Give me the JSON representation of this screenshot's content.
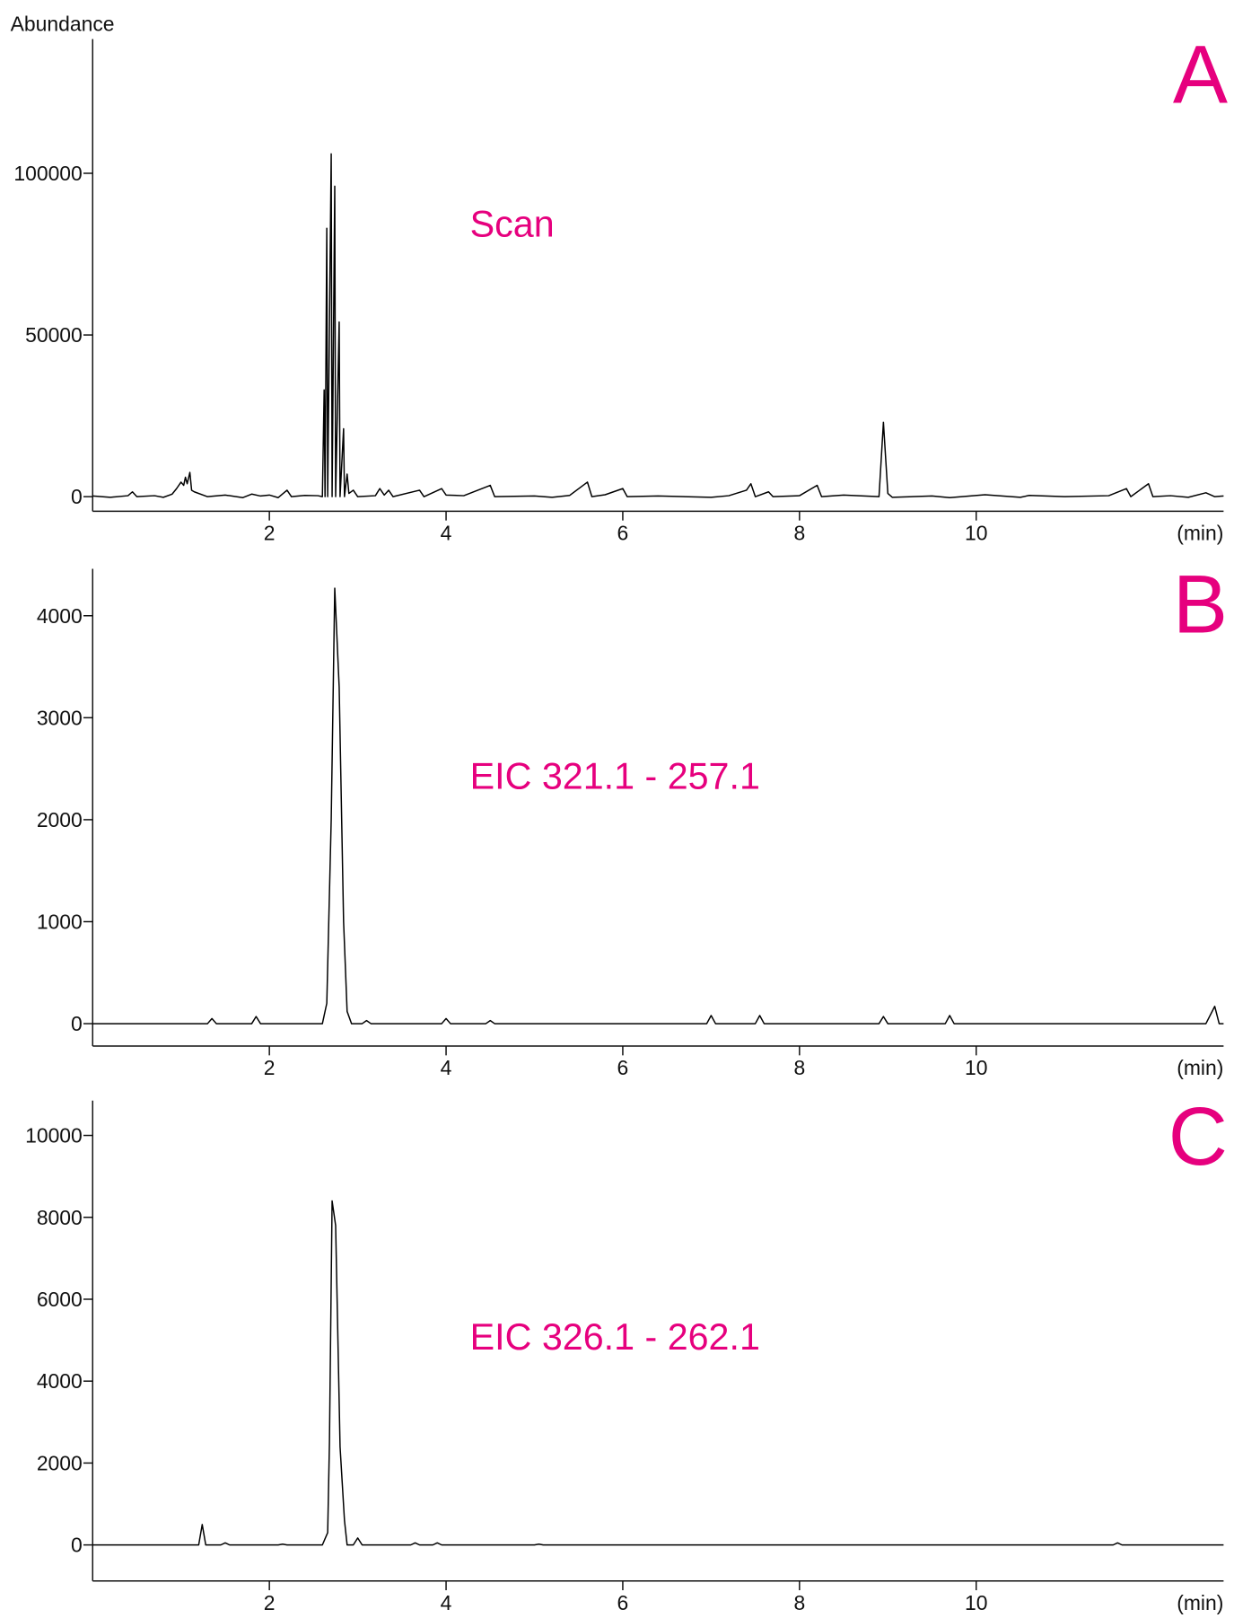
{
  "chart_data": [
    {
      "type": "line",
      "ylabel": "Abundance",
      "panel_label": "A",
      "annotation": "Scan",
      "xlabel": "(min)",
      "color": "#000000",
      "annotation_color": "#e6007e",
      "xlim": [
        0,
        12.8
      ],
      "xticks": [
        2,
        4,
        6,
        8,
        10
      ],
      "ylim": [
        -4500,
        141500
      ],
      "yticks": [
        0,
        50000,
        100000
      ],
      "x": [
        0,
        0.2,
        0.4,
        0.45,
        0.5,
        0.7,
        0.8,
        0.9,
        0.95,
        1.0,
        1.03,
        1.05,
        1.07,
        1.1,
        1.12,
        1.15,
        1.3,
        1.5,
        1.7,
        1.8,
        1.9,
        2.0,
        2.1,
        2.2,
        2.25,
        2.4,
        2.55,
        2.6,
        2.62,
        2.63,
        2.65,
        2.66,
        2.7,
        2.71,
        2.74,
        2.75,
        2.79,
        2.8,
        2.84,
        2.85,
        2.88,
        2.9,
        2.95,
        3.0,
        3.2,
        3.25,
        3.3,
        3.35,
        3.4,
        3.7,
        3.75,
        3.95,
        4.0,
        4.2,
        4.5,
        4.55,
        5.0,
        5.2,
        5.4,
        5.6,
        5.65,
        5.8,
        6.0,
        6.05,
        6.4,
        7.0,
        7.2,
        7.4,
        7.45,
        7.5,
        7.65,
        7.7,
        8.0,
        8.2,
        8.25,
        8.5,
        8.9,
        8.95,
        9.0,
        9.05,
        9.5,
        9.7,
        10.1,
        10.5,
        10.6,
        11.0,
        11.5,
        11.7,
        11.75,
        11.95,
        12.0,
        12.2,
        12.4,
        12.6,
        12.7,
        12.8
      ],
      "values": [
        200,
        -200,
        300,
        1500,
        0,
        300,
        -200,
        800,
        2500,
        4500,
        3500,
        6000,
        4000,
        7500,
        2000,
        1500,
        0,
        500,
        -300,
        800,
        200,
        500,
        -300,
        2000,
        0,
        400,
        300,
        0,
        33000,
        0,
        83000,
        0,
        106000,
        0,
        96000,
        0,
        54000,
        0,
        21000,
        0,
        7000,
        1000,
        2000,
        0,
        300,
        2500,
        500,
        2000,
        0,
        2000,
        0,
        2500,
        500,
        300,
        3500,
        0,
        200,
        -200,
        400,
        4500,
        0,
        600,
        2500,
        0,
        200,
        -200,
        300,
        2000,
        4000,
        0,
        1500,
        0,
        300,
        3500,
        0,
        500,
        0,
        23000,
        1000,
        -200,
        200,
        -300,
        600,
        -200,
        400,
        0,
        300,
        2500,
        0,
        4000,
        0,
        300,
        -200,
        1200,
        0,
        200
      ]
    },
    {
      "type": "line",
      "panel_label": "B",
      "annotation": "EIC 321.1 - 257.1",
      "xlabel": "(min)",
      "color": "#000000",
      "annotation_color": "#e6007e",
      "xlim": [
        0,
        12.8
      ],
      "xticks": [
        2,
        4,
        6,
        8,
        10
      ],
      "ylim": [
        -220,
        4460
      ],
      "yticks": [
        0,
        1000,
        2000,
        3000,
        4000
      ],
      "x": [
        0,
        1.3,
        1.35,
        1.4,
        1.8,
        1.85,
        1.9,
        2.6,
        2.65,
        2.7,
        2.74,
        2.79,
        2.84,
        2.88,
        2.93,
        3.05,
        3.1,
        3.15,
        3.95,
        4.0,
        4.05,
        4.45,
        4.5,
        4.55,
        6.95,
        7.0,
        7.05,
        7.5,
        7.55,
        7.6,
        8.9,
        8.95,
        9.0,
        9.65,
        9.7,
        9.75,
        12.6,
        12.7,
        12.75,
        12.8
      ],
      "values": [
        0,
        0,
        50,
        0,
        0,
        70,
        0,
        0,
        200,
        2000,
        4270,
        3300,
        1000,
        120,
        0,
        0,
        30,
        0,
        0,
        50,
        0,
        0,
        30,
        0,
        0,
        80,
        0,
        0,
        80,
        0,
        0,
        70,
        0,
        0,
        80,
        0,
        0,
        170,
        0,
        0
      ]
    },
    {
      "type": "line",
      "panel_label": "C",
      "annotation": "EIC 326.1 - 262.1",
      "xlabel": "(min)",
      "color": "#000000",
      "annotation_color": "#e6007e",
      "xlim": [
        0,
        12.8
      ],
      "xticks": [
        2,
        4,
        6,
        8,
        10
      ],
      "ylim": [
        -880,
        10850
      ],
      "yticks": [
        0,
        2000,
        4000,
        6000,
        8000,
        10000
      ],
      "x": [
        0,
        1.2,
        1.24,
        1.28,
        1.45,
        1.5,
        1.55,
        2.1,
        2.15,
        2.2,
        2.6,
        2.66,
        2.68,
        2.71,
        2.75,
        2.8,
        2.85,
        2.88,
        2.95,
        3.0,
        3.05,
        3.6,
        3.65,
        3.7,
        3.85,
        3.9,
        3.95,
        5.0,
        5.05,
        5.1,
        11.55,
        11.6,
        11.65,
        12.8
      ],
      "values": [
        0,
        0,
        500,
        0,
        0,
        50,
        0,
        0,
        20,
        0,
        0,
        300,
        2500,
        8400,
        7800,
        2400,
        600,
        0,
        0,
        170,
        0,
        0,
        50,
        0,
        0,
        50,
        0,
        0,
        20,
        0,
        0,
        50,
        0,
        0
      ]
    }
  ]
}
